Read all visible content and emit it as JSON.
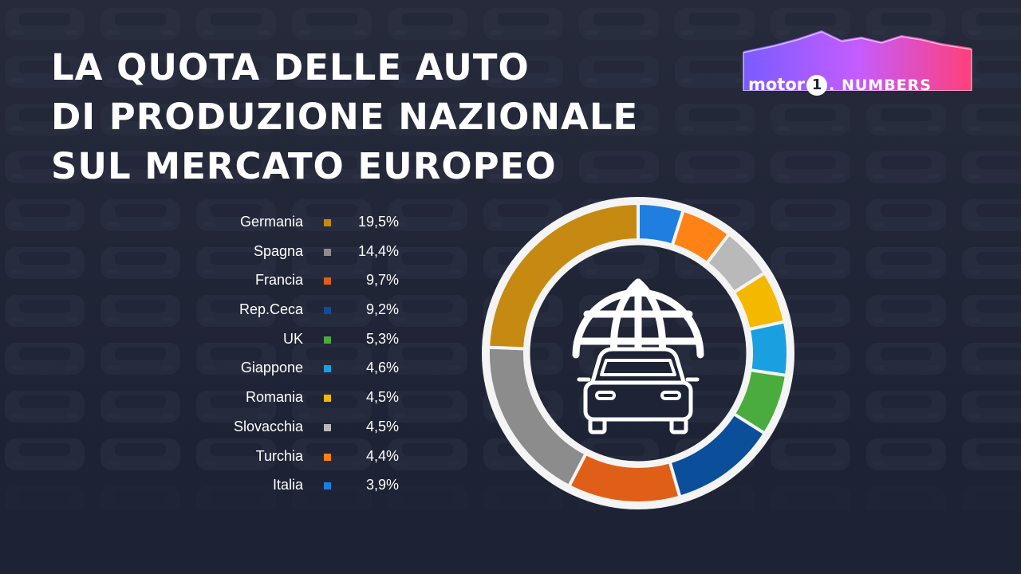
{
  "title_lines": [
    "LA QUOTA DELLE AUTO",
    "DI PRODUZIONE NAZIONALE",
    "SUL MERCATO EUROPEO"
  ],
  "logo": {
    "brand": "motor",
    "one": "1",
    "suffix": ". NUMBERS"
  },
  "center_icon": "globe-car-icon",
  "colors": {
    "background": "#1e2336",
    "donut_ring": "#f4f4f4",
    "text": "#ffffff"
  },
  "chart_data": {
    "type": "pie",
    "style": "donut",
    "unit": "%",
    "title": "LA QUOTA DELLE AUTO DI PRODUZIONE NAZIONALE SUL MERCATO EUROPEO",
    "legend_position": "left",
    "categories": [
      "Germania",
      "Spagna",
      "Francia",
      "Rep.Ceca",
      "UK",
      "Giappone",
      "Romania",
      "Slovacchia",
      "Turchia",
      "Italia"
    ],
    "values": [
      19.5,
      14.4,
      9.7,
      9.2,
      5.3,
      4.6,
      4.5,
      4.5,
      4.4,
      3.9
    ],
    "value_labels": [
      "19,5%",
      "14,4%",
      "9,7%",
      "9,2%",
      "5,3%",
      "4,6%",
      "4,5%",
      "4,5%",
      "4,4%",
      "3,9%"
    ],
    "colors": [
      "#c68a12",
      "#8c8c8c",
      "#e05f18",
      "#0b4e9a",
      "#4aab3e",
      "#1aa0e0",
      "#f5b800",
      "#b9b9b9",
      "#ff8216",
      "#1f7ee0"
    ],
    "ring_order": [
      "Italia",
      "Turchia",
      "Slovacchia",
      "Romania",
      "Giappone",
      "UK",
      "Rep.Ceca",
      "Francia",
      "Spagna",
      "Germania"
    ]
  }
}
